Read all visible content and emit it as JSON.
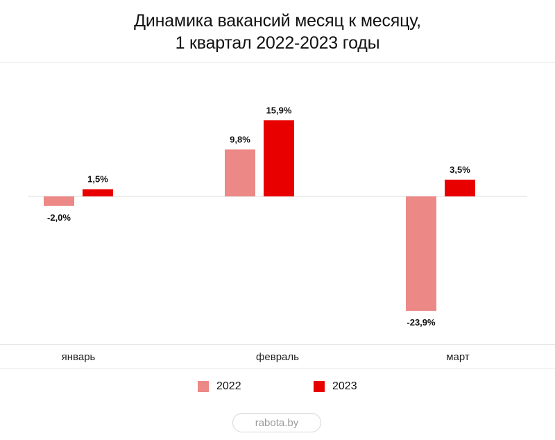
{
  "chart_data": {
    "type": "bar",
    "title": [
      "Динамика вакансий месяц к месяцу,",
      "1 квартал 2022-2023 годы"
    ],
    "categories": [
      "январь",
      "февраль",
      "март"
    ],
    "series": [
      {
        "name": "2022",
        "color": "#ec8886",
        "values": [
          -2.0,
          9.8,
          -23.9
        ],
        "labels": [
          "-2,0%",
          "9,8%",
          "-23,9%"
        ]
      },
      {
        "name": "2023",
        "color": "#e80000",
        "values": [
          1.5,
          15.9,
          3.5
        ],
        "labels": [
          "1,5%",
          "15,9%",
          "3,5%"
        ]
      }
    ],
    "xlabel": "",
    "ylabel": "",
    "ylim": [
      -30,
      30
    ],
    "legend_position": "bottom-center"
  },
  "source": "rabota.by"
}
